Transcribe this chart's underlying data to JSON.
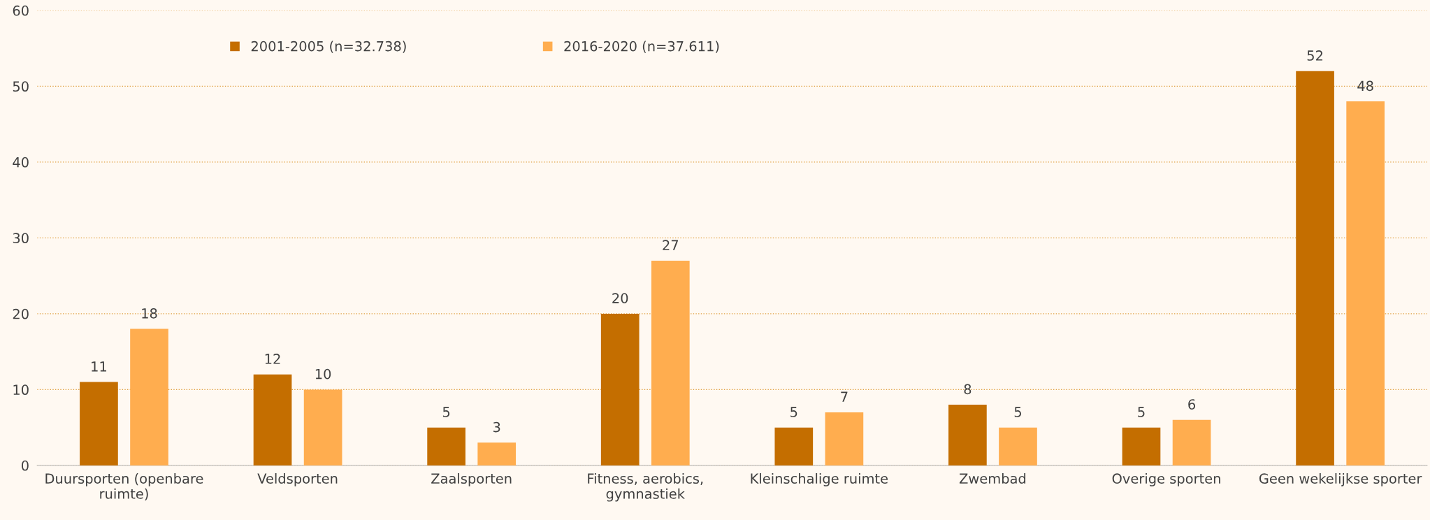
{
  "chart_data": {
    "type": "bar",
    "categories": [
      "Duursporten (openbare\nruimte)",
      "Veldsporten",
      "Zaalsporten",
      "Fitness, aerobics,\ngymnastiek",
      "Kleinschalige ruimte",
      "Zwembad",
      "Overige sporten",
      "Geen wekelijkse sporter"
    ],
    "series": [
      {
        "name": "2001-2005 (n=32.738)",
        "color": "#c46e00",
        "values": [
          11,
          12,
          5,
          20,
          5,
          8,
          5,
          52
        ]
      },
      {
        "name": "2016-2020 (n=37.611)",
        "color": "#ffad4f",
        "values": [
          18,
          10,
          3,
          27,
          7,
          5,
          6,
          48
        ]
      }
    ],
    "ylim": [
      0,
      60
    ],
    "yticks": [
      0,
      10,
      20,
      30,
      40,
      50,
      60
    ],
    "grid": "y",
    "legend": "top left",
    "data_labels": true
  }
}
